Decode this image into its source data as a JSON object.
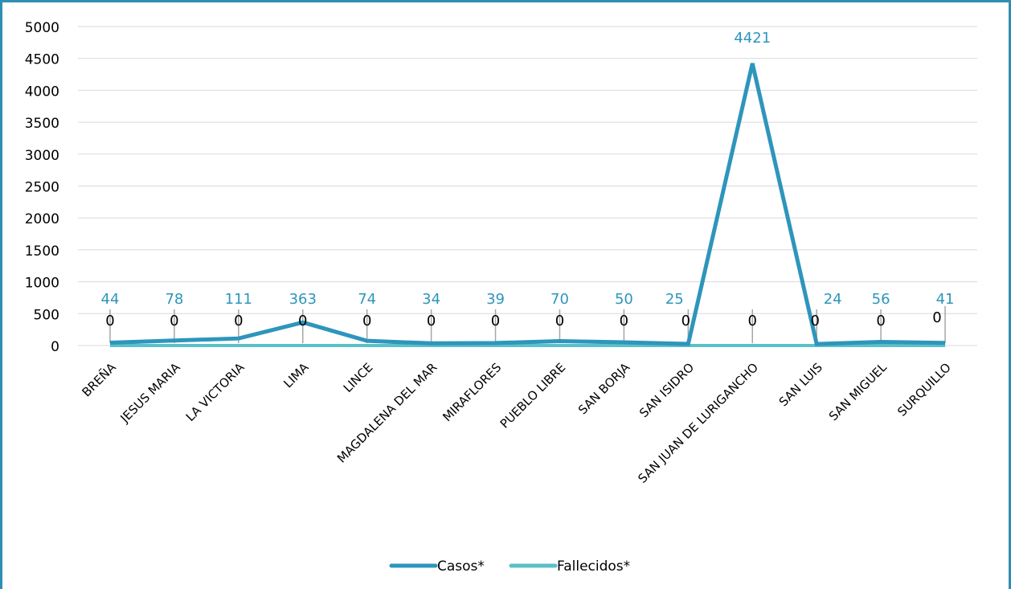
{
  "chart_data": {
    "type": "line",
    "categories": [
      "BREÑA",
      "JESUS MARIA",
      "LA VICTORIA",
      "LIMA",
      "LINCE",
      "MAGDALENA DEL MAR",
      "MIRAFLORES",
      "PUEBLO LIBRE",
      "SAN BORJA",
      "SAN ISIDRO",
      "SAN JUAN DE LURIGANCHO",
      "SAN LUIS",
      "SAN MIGUEL",
      "SURQUILLO"
    ],
    "series": [
      {
        "name": "Casos*",
        "values": [
          44,
          78,
          111,
          363,
          74,
          34,
          39,
          70,
          50,
          25,
          4421,
          24,
          56,
          41
        ],
        "color": "#2e95bc"
      },
      {
        "name": "Fallecidos*",
        "values": [
          0,
          0,
          0,
          0,
          0,
          0,
          0,
          0,
          0,
          0,
          0,
          0,
          0,
          0
        ],
        "color": "#5bc0c8"
      }
    ],
    "ylim": [
      0,
      5000
    ],
    "yticks": [
      0,
      500,
      1000,
      1500,
      2000,
      2500,
      3000,
      3500,
      4000,
      4500,
      5000
    ],
    "grid": true,
    "legend_position": "bottom"
  }
}
